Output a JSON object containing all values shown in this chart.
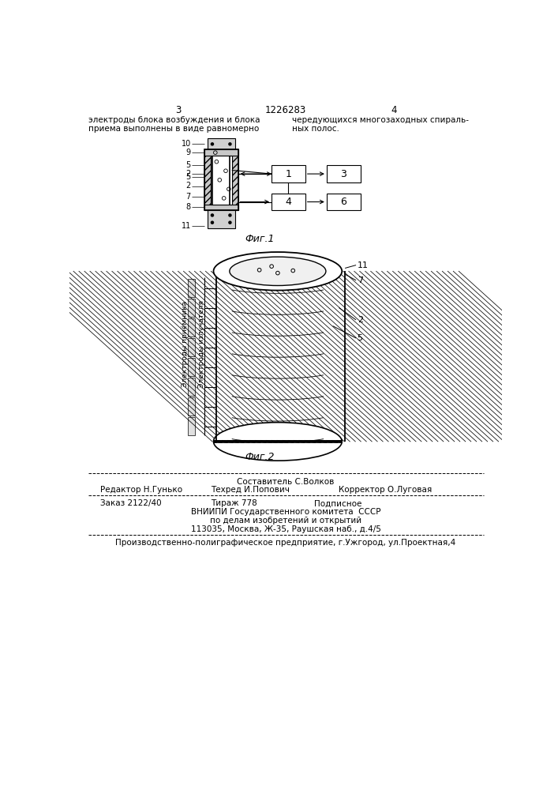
{
  "bg_color": "#ffffff",
  "page_num_left": "3",
  "page_num_right": "4",
  "patent_number": "1226283",
  "header_left_1": "электроды блока возбуждения и блока",
  "header_left_2": "приема выполнены в виде равномерно",
  "header_right_1": "чередующихся многозаходных спираль-",
  "header_right_2": "ных полос.",
  "fig1_caption": "Фиг.1",
  "fig2_caption": "Фиг.2",
  "label_10": "10",
  "label_9": "9",
  "label_5a": "5",
  "label_2a": "2",
  "label_5b": "5",
  "label_2b": "2",
  "label_7": "7",
  "label_8": "8",
  "label_11": "11",
  "block1": "1",
  "block3": "3",
  "block4": "4",
  "block6": "6",
  "elec_priemnika": "Электроды приёмника",
  "elec_izluchatelya": "Электроды излучателя",
  "fig2_label_11": "11",
  "fig2_label_7": "7",
  "fig2_label_2": "2",
  "fig2_label_5": "5",
  "footer_sostavitel": "Составитель С.Волков",
  "footer_redaktor": "Редактор Н.Гунько",
  "footer_tekhred": "Техред И.Попович",
  "footer_korrektor": "Корректор О.Луговая",
  "footer_zakaz": "Заказ 2122/40",
  "footer_tirazh": "Тираж 778",
  "footer_podpisnoe": "Подписное",
  "footer_vniip1": "ВНИИПИ Государственного комитета  СССР",
  "footer_vniip2": "по делам изобретений и открытий",
  "footer_addr": "113035, Москва, Ж-35, Раушская наб., д.4/5",
  "footer_prod": "Производственно-полиграфическое предприятие, г.Ужгород, ул.Проектная,4"
}
